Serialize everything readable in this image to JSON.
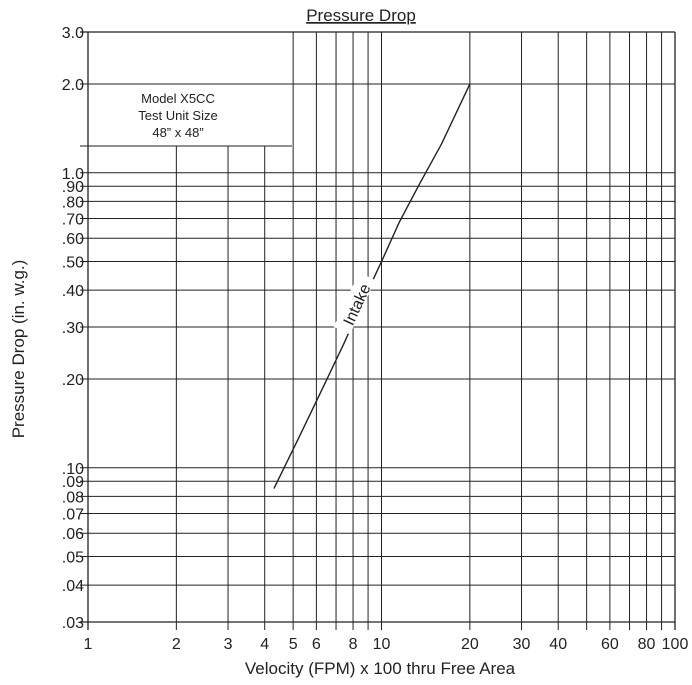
{
  "chart_data": {
    "type": "line",
    "title": "Pressure Drop",
    "xlabel": "Velocity (FPM) x 100 thru Free Area",
    "ylabel": "Pressure Drop (in. w.g.)",
    "x_scale": "log",
    "y_scale": "log",
    "xlim": [
      1,
      100
    ],
    "ylim": [
      0.03,
      3.0
    ],
    "x_ticks": [
      {
        "value": 1,
        "label": "1"
      },
      {
        "value": 2,
        "label": "2"
      },
      {
        "value": 3,
        "label": "3"
      },
      {
        "value": 4,
        "label": "4"
      },
      {
        "value": 5,
        "label": "5"
      },
      {
        "value": 6,
        "label": "6"
      },
      {
        "value": 8,
        "label": "8"
      },
      {
        "value": 10,
        "label": "10"
      },
      {
        "value": 20,
        "label": "20"
      },
      {
        "value": 30,
        "label": "30"
      },
      {
        "value": 40,
        "label": "40"
      },
      {
        "value": 60,
        "label": "60"
      },
      {
        "value": 80,
        "label": "80"
      },
      {
        "value": 100,
        "label": "100"
      }
    ],
    "x_gridlines": [
      1,
      2,
      3,
      4,
      5,
      6,
      7,
      8,
      9,
      10,
      20,
      30,
      40,
      50,
      60,
      70,
      80,
      90,
      100
    ],
    "y_ticks": [
      {
        "value": 3.0,
        "label": "3.0"
      },
      {
        "value": 2.0,
        "label": "2.0"
      },
      {
        "value": 1.0,
        "label": "1.0"
      },
      {
        "value": 0.9,
        "label": ".90"
      },
      {
        "value": 0.8,
        "label": ".80"
      },
      {
        "value": 0.7,
        "label": ".70"
      },
      {
        "value": 0.6,
        "label": ".60"
      },
      {
        "value": 0.5,
        "label": ".50"
      },
      {
        "value": 0.4,
        "label": ".40"
      },
      {
        "value": 0.3,
        "label": ".30"
      },
      {
        "value": 0.2,
        "label": ".20"
      },
      {
        "value": 0.1,
        "label": ".10"
      },
      {
        "value": 0.09,
        "label": ".09"
      },
      {
        "value": 0.08,
        "label": ".08"
      },
      {
        "value": 0.07,
        "label": ".07"
      },
      {
        "value": 0.06,
        "label": ".06"
      },
      {
        "value": 0.05,
        "label": ".05"
      },
      {
        "value": 0.04,
        "label": ".04"
      },
      {
        "value": 0.03,
        "label": ".03"
      }
    ],
    "grid": true,
    "series": [
      {
        "name": "Intake",
        "color": "#222222",
        "points": [
          {
            "x": 4.3,
            "y": 0.085
          },
          {
            "x": 5.2,
            "y": 0.125
          },
          {
            "x": 6.2,
            "y": 0.18
          },
          {
            "x": 7.4,
            "y": 0.26
          },
          {
            "x": 8.8,
            "y": 0.38
          },
          {
            "x": 10.0,
            "y": 0.5
          },
          {
            "x": 11.5,
            "y": 0.68
          },
          {
            "x": 13.5,
            "y": 0.92
          },
          {
            "x": 16.0,
            "y": 1.25
          },
          {
            "x": 20.0,
            "y": 2.0
          }
        ]
      }
    ],
    "annotation_box": {
      "lines": [
        "Model X5CC",
        "Test Unit Size",
        "48” x 48”"
      ]
    }
  }
}
